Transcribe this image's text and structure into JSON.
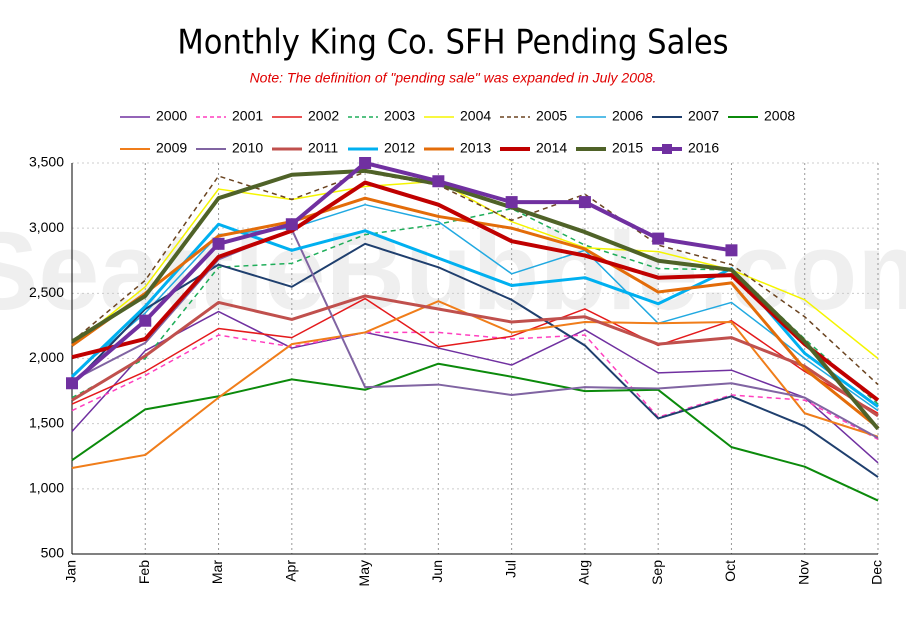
{
  "chart_data": {
    "type": "line",
    "title": "Monthly King Co. SFH Pending Sales",
    "subtitle": "Note: The definition of \"pending sale\" was expanded in July 2008.",
    "watermark": "SeattleBubble.com",
    "categories": [
      "Jan",
      "Feb",
      "Mar",
      "Apr",
      "May",
      "Jun",
      "Jul",
      "Aug",
      "Sep",
      "Oct",
      "Nov",
      "Dec"
    ],
    "ylim": [
      500,
      3500
    ],
    "yticks": [
      500,
      {
        "value": 1000,
        "label": "1,000"
      },
      {
        "value": 1500,
        "label": "1,500"
      },
      {
        "value": 2000,
        "label": "2,000"
      },
      {
        "value": 2500,
        "label": "2,500"
      },
      {
        "value": 3000,
        "label": "3,000"
      },
      {
        "value": 3500,
        "label": "3,500"
      }
    ],
    "grid": true,
    "series": [
      {
        "name": "2000",
        "color": "#7030a0",
        "width": 1.5,
        "values": [
          1440,
          2060,
          2360,
          2080,
          2200,
          2080,
          1950,
          2220,
          1890,
          1910,
          1700,
          1200
        ]
      },
      {
        "name": "2001",
        "color": "#ff3fbf",
        "width": 1.5,
        "dash": true,
        "values": [
          1600,
          1870,
          2180,
          2090,
          2200,
          2200,
          2150,
          2180,
          1550,
          1720,
          1680,
          1380
        ]
      },
      {
        "name": "2002",
        "color": "#e41a1c",
        "width": 1.5,
        "values": [
          1650,
          1900,
          2230,
          2160,
          2460,
          2090,
          2170,
          2380,
          2100,
          2290,
          1900,
          1580
        ]
      },
      {
        "name": "2003",
        "color": "#1fae5a",
        "width": 1.5,
        "dash": true,
        "values": [
          1700,
          2000,
          2700,
          2730,
          2950,
          3030,
          3150,
          2870,
          2690,
          2680,
          2150,
          1650
        ]
      },
      {
        "name": "2004",
        "color": "#f5f500",
        "width": 1.5,
        "values": [
          2100,
          2550,
          3300,
          3220,
          3320,
          3360,
          3050,
          2850,
          2820,
          2680,
          2450,
          2000
        ]
      },
      {
        "name": "2005",
        "color": "#6b4420",
        "width": 1.5,
        "dash": true,
        "values": [
          2130,
          2600,
          3400,
          3220,
          3430,
          3330,
          3060,
          3260,
          2870,
          2720,
          2320,
          1800
        ]
      },
      {
        "name": "2006",
        "color": "#21a9e1",
        "width": 1.5,
        "values": [
          1870,
          2350,
          2950,
          3000,
          3180,
          3050,
          2650,
          2830,
          2270,
          2430,
          2000,
          1600
        ]
      },
      {
        "name": "2007",
        "color": "#1f3f6e",
        "width": 2,
        "values": [
          1800,
          2380,
          2720,
          2550,
          2880,
          2700,
          2450,
          2100,
          1540,
          1710,
          1480,
          1090
        ]
      },
      {
        "name": "2008",
        "color": "#0b8a0b",
        "width": 2,
        "values": [
          1220,
          1610,
          1710,
          1840,
          1760,
          1960,
          1860,
          1750,
          1760,
          1320,
          1170,
          910
        ]
      },
      {
        "name": "2009",
        "color": "#f07d1a",
        "width": 2,
        "values": [
          1160,
          1260,
          1700,
          2110,
          2200,
          2440,
          2200,
          2280,
          2270,
          2280,
          1580,
          1400
        ]
      },
      {
        "name": "2010",
        "color": "#8064a2",
        "width": 2,
        "values": [
          1830,
          2120,
          2760,
          2990,
          1780,
          1800,
          1720,
          1780,
          1770,
          1810,
          1700,
          1390
        ]
      },
      {
        "name": "2011",
        "color": "#c0504d",
        "width": 3,
        "values": [
          1680,
          2020,
          2430,
          2300,
          2480,
          2380,
          2280,
          2320,
          2110,
          2160,
          1940,
          1560
        ]
      },
      {
        "name": "2012",
        "color": "#00b0f0",
        "width": 3,
        "values": [
          1860,
          2400,
          3030,
          2830,
          2980,
          2770,
          2560,
          2620,
          2420,
          2690,
          2040,
          1630
        ]
      },
      {
        "name": "2013",
        "color": "#e36c09",
        "width": 3,
        "values": [
          2100,
          2500,
          2940,
          3050,
          3230,
          3090,
          3000,
          2840,
          2510,
          2580,
          1920,
          1470
        ]
      },
      {
        "name": "2014",
        "color": "#c00000",
        "width": 4,
        "values": [
          2010,
          2150,
          2780,
          2980,
          3350,
          3180,
          2900,
          2790,
          2620,
          2640,
          2110,
          1680
        ]
      },
      {
        "name": "2015",
        "color": "#4f6228",
        "width": 4,
        "values": [
          2130,
          2480,
          3230,
          3410,
          3440,
          3340,
          3160,
          2970,
          2750,
          2680,
          2130,
          1460
        ]
      },
      {
        "name": "2016",
        "color": "#7030a0",
        "width": 4,
        "marker": "square",
        "values": [
          1810,
          2290,
          2880,
          3030,
          3500,
          3360,
          3200,
          3200,
          2920,
          2830,
          null,
          null
        ]
      }
    ]
  }
}
